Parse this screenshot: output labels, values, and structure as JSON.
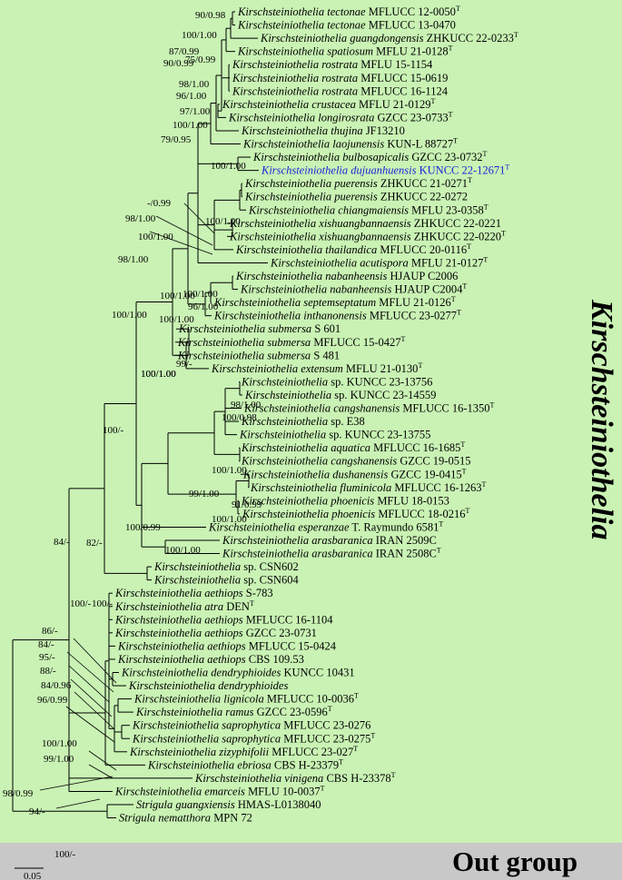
{
  "colors": {
    "ingroup_bg": "#c9f2b4",
    "outgroup_bg": "#c8c8c8",
    "highlight": "#1a25d8",
    "text": "#000000"
  },
  "clade_label": "Kirschsteiniothelia",
  "outgroup_label": "Out group",
  "scale_label": "0.05",
  "taxa": [
    {
      "genus": "Kirschsteiniothelia",
      "epithet": "tectonae",
      "voucher": "MFLUCC 12-0050",
      "type": "T"
    },
    {
      "genus": "Kirschsteiniothelia",
      "epithet": "tectonae",
      "voucher": "MFLUCC 13-0470",
      "type": ""
    },
    {
      "genus": "Kirschsteiniothelia",
      "epithet": "guangdongensis",
      "voucher": "ZHKUCC 22-0233",
      "type": "T"
    },
    {
      "genus": "Kirschsteiniothelia",
      "epithet": "spatiosum",
      "voucher": "MFLU 21-0128",
      "type": "T"
    },
    {
      "genus": "Kirschsteiniothelia",
      "epithet": "rostrata",
      "voucher": "MFLU 15-1154",
      "type": ""
    },
    {
      "genus": "Kirschsteiniothelia",
      "epithet": "rostrata",
      "voucher": "MFLUCC 15-0619",
      "type": ""
    },
    {
      "genus": "Kirschsteiniothelia",
      "epithet": "rostrata",
      "voucher": "MFLUCC 16-1124",
      "type": ""
    },
    {
      "genus": "Kirschsteiniothelia",
      "epithet": "crustacea",
      "voucher": "MFLU 21-0129",
      "type": "T"
    },
    {
      "genus": "Kirschsteiniothelia",
      "epithet": "longirosrata",
      "voucher": "GZCC 23-0733",
      "type": "T"
    },
    {
      "genus": "Kirschsteiniothelia",
      "epithet": "thujina",
      "voucher": "JF13210",
      "type": ""
    },
    {
      "genus": "Kirschsteiniothelia",
      "epithet": "laojunensis",
      "voucher": "KUN-L 88727",
      "type": "T"
    },
    {
      "genus": "Kirschsteiniothelia",
      "epithet": "bulbosapicalis",
      "voucher": "GZCC 23-0732",
      "type": "T"
    },
    {
      "genus": "Kirschsteiniothelia",
      "epithet": "dujuanhuensis",
      "voucher": "KUNCC 22-12671",
      "type": "T",
      "highlight": true
    },
    {
      "genus": "Kirschsteiniothelia",
      "epithet": "puerensis",
      "voucher": "ZHKUCC 21-0271",
      "type": "T"
    },
    {
      "genus": "Kirschsteiniothelia",
      "epithet": "puerensis",
      "voucher": "ZHKUCC 22-0272",
      "type": ""
    },
    {
      "genus": "Kirschsteiniothelia",
      "epithet": "chiangmaiensis",
      "voucher": "MFLU 23-0358",
      "type": "T"
    },
    {
      "genus": "Kirschsteiniothelia",
      "epithet": "xishuangbannaensis",
      "voucher": "ZHKUCC 22-0221",
      "type": ""
    },
    {
      "genus": "Kirschsteiniothelia",
      "epithet": "xishuangbannaensis",
      "voucher": "ZHKUCC 22-0220",
      "type": "T"
    },
    {
      "genus": "Kirschsteiniothelia",
      "epithet": "thailandica",
      "voucher": "MFLUCC 20-0116",
      "type": "T"
    },
    {
      "genus": "Kirschsteiniothelia",
      "epithet": "acutispora",
      "voucher": "MFLU 21-0127",
      "type": "T"
    },
    {
      "genus": "Kirschsteiniothelia",
      "epithet": "nabanheensis",
      "voucher": "HJAUP C2006",
      "type": ""
    },
    {
      "genus": "Kirschsteiniothelia",
      "epithet": "nabanheensis",
      "voucher": "HJAUP C2004",
      "type": "T"
    },
    {
      "genus": "Kirschsteiniothelia",
      "epithet": "septemseptatum",
      "voucher": "MFLU 21-0126",
      "type": "T"
    },
    {
      "genus": "Kirschsteiniothelia",
      "epithet": "inthanonensis",
      "voucher": "MFLUCC 23-0277",
      "type": "T"
    },
    {
      "genus": "Kirschsteiniothelia",
      "epithet": "submersa",
      "voucher": "S 601",
      "type": ""
    },
    {
      "genus": "Kirschsteiniothelia",
      "epithet": "submersa",
      "voucher": "MFLUCC 15-0427",
      "type": "T"
    },
    {
      "genus": "Kirschsteiniothelia",
      "epithet": "submersa",
      "voucher": "S 481",
      "type": ""
    },
    {
      "genus": "Kirschsteiniothelia",
      "epithet": "extensum",
      "voucher": "MFLU 21-0130",
      "type": "T"
    },
    {
      "genus": "Kirschsteiniothelia",
      "epithet": "sp.",
      "voucher": "KUNCC 23-13756",
      "type": "",
      "ep_roman": true
    },
    {
      "genus": "Kirschsteiniothelia",
      "epithet": "sp.",
      "voucher": "KUNCC 23-14559",
      "type": "",
      "ep_roman": true
    },
    {
      "genus": "Kirschsteiniothelia",
      "epithet": "cangshanensis",
      "voucher": "MFLUCC 16-1350",
      "type": "T"
    },
    {
      "genus": "Kirschsteiniothelia",
      "epithet": "sp.",
      "voucher": "E38",
      "type": "",
      "ep_roman": true
    },
    {
      "genus": "Kirschsteiniothelia",
      "epithet": "sp.",
      "voucher": "KUNCC 23-13755",
      "type": "",
      "ep_roman": true
    },
    {
      "genus": "Kirschsteiniothelia",
      "epithet": "aquatica",
      "voucher": "MFLUCC 16-1685",
      "type": "T"
    },
    {
      "genus": "Kirschsteiniothelia",
      "epithet": "cangshanensis",
      "voucher": "GZCC 19-0515",
      "type": ""
    },
    {
      "genus": "Kirschsteiniothelia",
      "epithet": "dushanensis",
      "voucher": "GZCC 19-0415",
      "type": "T"
    },
    {
      "genus": "Kirschsteiniothelia",
      "epithet": "fluminicola",
      "voucher": "MFLUCC 16-1263",
      "type": "T"
    },
    {
      "genus": "Kirschsteiniothelia",
      "epithet": "phoenicis",
      "voucher": "MFLU 18-0153",
      "type": ""
    },
    {
      "genus": "Kirschsteiniothelia",
      "epithet": "phoenicis",
      "voucher": "MFLUCC 18-0216",
      "type": "T"
    },
    {
      "genus": "Kirschsteiniothelia",
      "epithet": "esperanzae",
      "voucher": "T. Raymundo 6581",
      "type": "T"
    },
    {
      "genus": "Kirschsteiniothelia",
      "epithet": "arasbaranica",
      "voucher": "IRAN 2509C",
      "type": ""
    },
    {
      "genus": "Kirschsteiniothelia",
      "epithet": "arasbaranica",
      "voucher": "IRAN 2508C",
      "type": "T"
    },
    {
      "genus": "Kirschsteiniothelia",
      "epithet": "sp.",
      "voucher": "CSN602",
      "type": "",
      "ep_roman": true
    },
    {
      "genus": "Kirschsteiniothelia",
      "epithet": "sp.",
      "voucher": "CSN604",
      "type": "",
      "ep_roman": true
    },
    {
      "genus": "Kirschsteiniothelia",
      "epithet": "aethiops",
      "voucher": "S-783",
      "type": ""
    },
    {
      "genus": "Kirschsteiniothelia",
      "epithet": "atra",
      "voucher": "DEN",
      "type": "T"
    },
    {
      "genus": "Kirschsteiniothelia",
      "epithet": "aethiops",
      "voucher": "MFLUCC 16-1104",
      "type": ""
    },
    {
      "genus": "Kirschsteiniothelia",
      "epithet": "aethiops",
      "voucher": "GZCC 23-0731",
      "type": ""
    },
    {
      "genus": "Kirschsteiniothelia",
      "epithet": "aethiops",
      "voucher": "MFLUCC 15-0424",
      "type": ""
    },
    {
      "genus": "Kirschsteiniothelia",
      "epithet": "aethiops",
      "voucher": "CBS 109.53",
      "type": ""
    },
    {
      "genus": "Kirschsteiniothelia",
      "epithet": "dendryphioides",
      "voucher": "KUNCC 10431",
      "type": ""
    },
    {
      "genus": "Kirschsteiniothelia",
      "epithet": "dendryphioides",
      "voucher": "",
      "type": ""
    },
    {
      "genus": "Kirschsteiniothelia",
      "epithet": "lignicola",
      "voucher": "MFLUCC 10-0036",
      "type": "T"
    },
    {
      "genus": "Kirschsteiniothelia",
      "epithet": "ramus",
      "voucher": "GZCC 23-0596",
      "type": "T"
    },
    {
      "genus": "Kirschsteiniothelia",
      "epithet": "saprophytica",
      "voucher": "MFLUCC 23-0276",
      "type": ""
    },
    {
      "genus": "Kirschsteiniothelia",
      "epithet": "saprophytica",
      "voucher": "MFLUCC 23-0275",
      "type": "T"
    },
    {
      "genus": "Kirschsteiniothelia",
      "epithet": "zizyphifolii",
      "voucher": "MFLUCC 23-027",
      "type": "T"
    },
    {
      "genus": "Kirschsteiniothelia",
      "epithet": "ebriosa",
      "voucher": "CBS H-23379",
      "type": "T"
    },
    {
      "genus": "Kirschsteiniothelia",
      "epithet": "vinigena",
      "voucher": "CBS H-23378",
      "type": "T"
    },
    {
      "genus": "Kirschsteiniothelia",
      "epithet": "emarceis",
      "voucher": "MFLU 10-0037",
      "type": "T"
    },
    {
      "genus": "Strigula",
      "epithet": "guangxiensis",
      "voucher": "HMAS-L0138040",
      "type": ""
    },
    {
      "genus": "Strigula",
      "epithet": "nematthora",
      "voucher": "MPN 72",
      "type": ""
    }
  ],
  "support_values": [
    "90/0.98",
    "100/1.00",
    "87/0.99",
    "75/0.99",
    "90/0.99",
    "98/1.00",
    "96/1.00",
    "97/1.00",
    "100/1.00",
    "79/0.95",
    "100/1.00",
    "100/1.00",
    "-/0.99",
    "98/1.00",
    "100/1.00",
    "98/1.00",
    "100/1.00",
    "100/1.00",
    "96/1.00",
    "100/1.00",
    "100/1.00",
    "100/1.00",
    "99/-",
    "100/1.00",
    "98/1.00",
    "100/0.98",
    "100/-",
    "100/1.00",
    "99/1.00",
    "91/0.99",
    "100/1.00",
    "100/0.99",
    "82/-",
    "100/1.00",
    "84/-",
    "100/-",
    "100/-",
    "86/-",
    "84/-",
    "95/-",
    "88/-",
    "84/0.96",
    "96/0.99",
    "100/1.00",
    "99/1.00",
    "98/0.99",
    "94/-",
    "100/-"
  ]
}
